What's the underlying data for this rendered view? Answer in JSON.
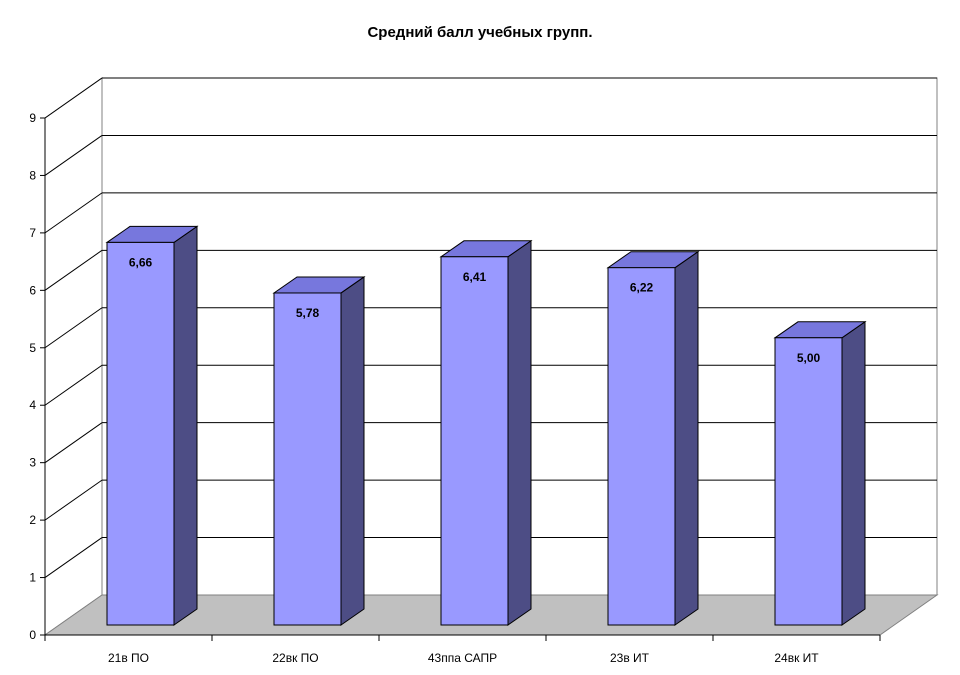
{
  "chart_data": {
    "type": "bar",
    "title": "Средний балл учебных групп.",
    "categories": [
      "21в ПО",
      "22вк ПО",
      "43ппа САПР",
      "23в ИТ",
      "24вк ИТ"
    ],
    "values": [
      6.66,
      5.78,
      6.41,
      6.22,
      5.0
    ],
    "data_labels": [
      "6,66",
      "5,78",
      "6,41",
      "6,22",
      "5,00"
    ],
    "y_ticks": [
      "0",
      "1",
      "2",
      "3",
      "4",
      "5",
      "6",
      "7",
      "8",
      "9"
    ],
    "ylim": [
      0,
      9
    ],
    "xlabel": "",
    "ylabel": "",
    "grid": true,
    "legend": "none",
    "style": "3d-column"
  },
  "colors": {
    "bar_front": "#9999ff",
    "bar_top": "#7777dd",
    "bar_side": "#4d4d85",
    "floor": "#c0c0c0",
    "gridline": "#000000"
  }
}
